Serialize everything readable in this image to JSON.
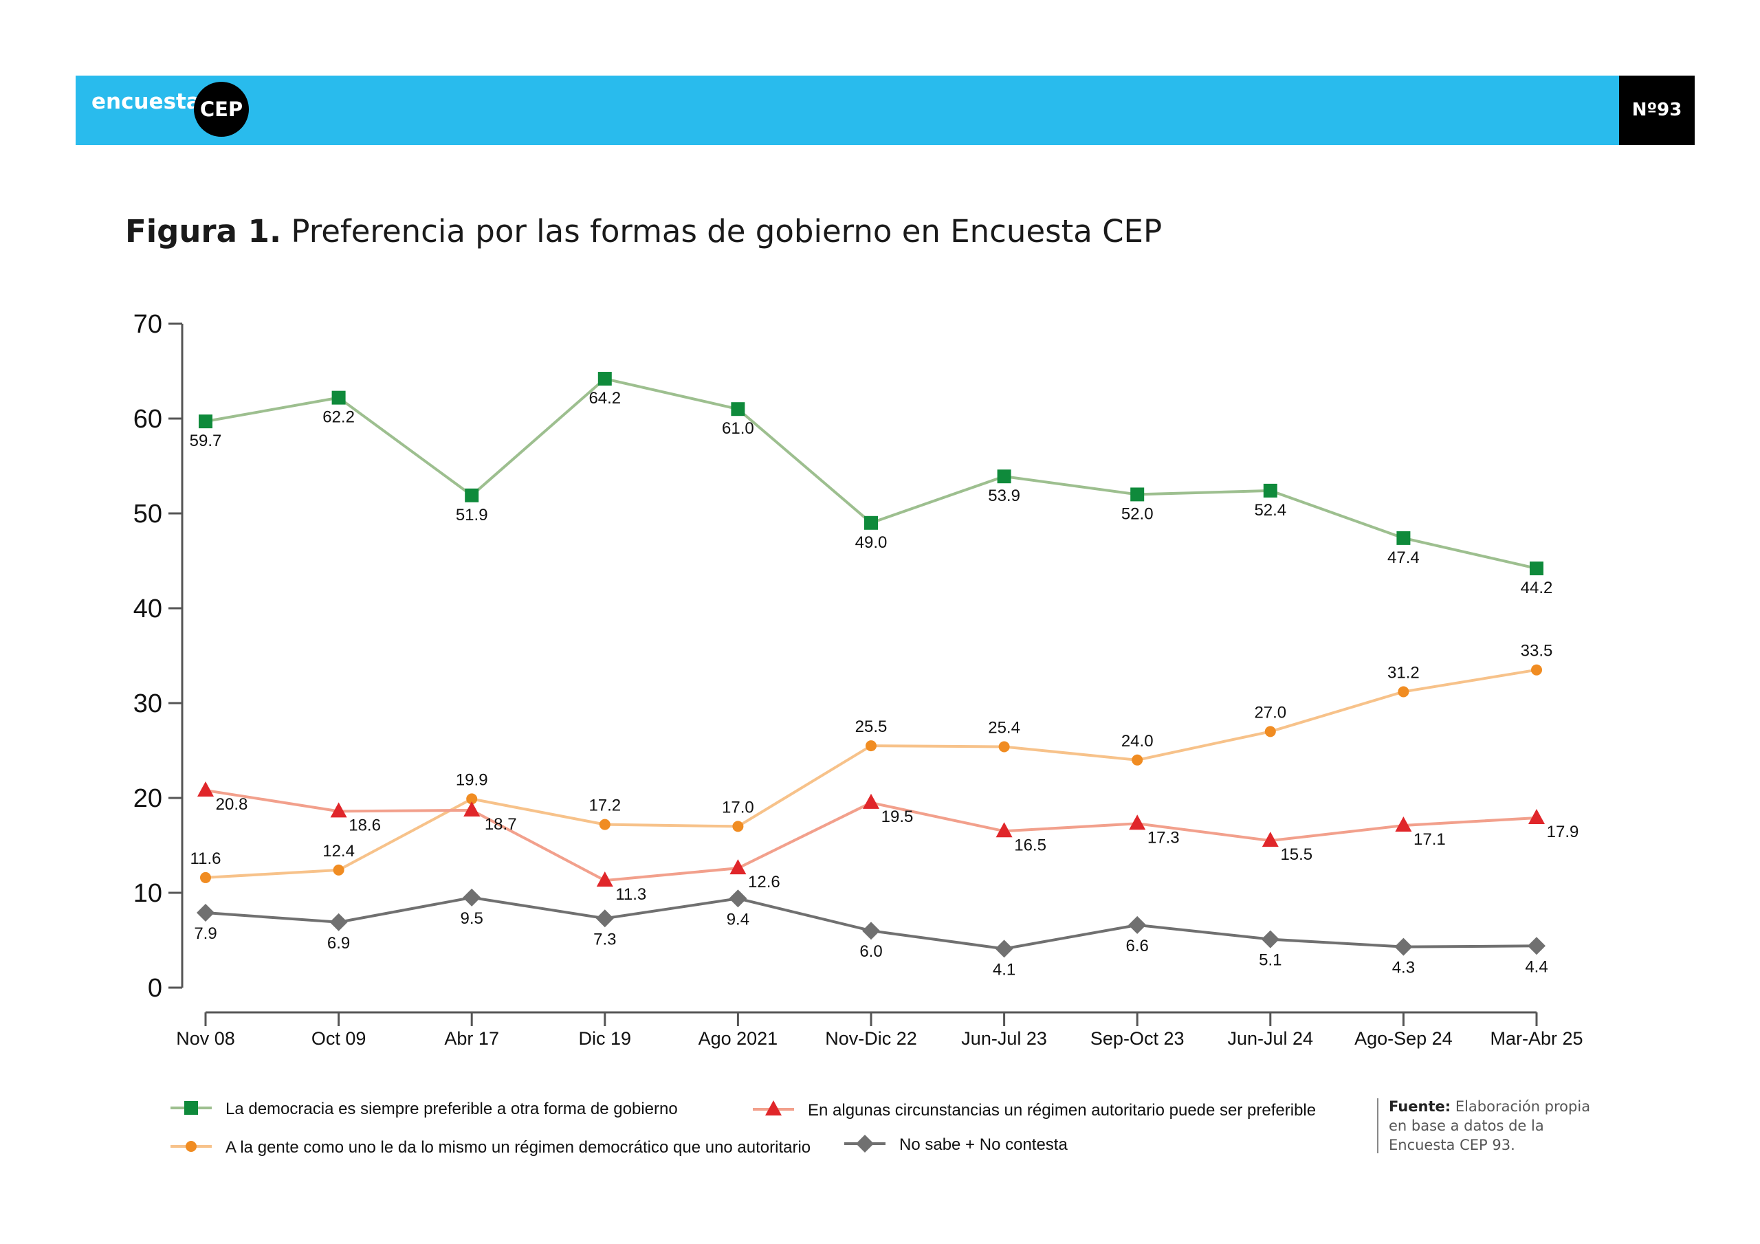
{
  "header": {
    "brand_text": "encuesta",
    "brand_badge": "CEP",
    "issue": "Nº93",
    "colors": {
      "bar": "#29bbed",
      "badge": "#000000"
    }
  },
  "figure": {
    "title_bold": "Figura 1.",
    "title_rest": "Preferencia por las formas de gobierno en Encuesta CEP"
  },
  "source": {
    "label": "Fuente:",
    "text": "Elaboración propia en base a datos de la Encuesta CEP 93."
  },
  "chart_data": {
    "type": "line",
    "categories": [
      "Nov 08",
      "Oct 09",
      "Abr 17",
      "Dic 19",
      "Ago 2021",
      "Nov-Dic 22",
      "Jun-Jul 23",
      "Sep-Oct 23",
      "Jun-Jul 24",
      "Ago-Sep 24",
      "Mar-Abr 25"
    ],
    "ylim": [
      0,
      70
    ],
    "yticks": [
      0,
      10,
      20,
      30,
      40,
      50,
      60,
      70
    ],
    "grid": false,
    "legend_position": "bottom",
    "series": [
      {
        "name": "La democracia es siempre preferible a otra forma de gobierno",
        "values": [
          59.7,
          62.2,
          51.9,
          64.2,
          61.0,
          49.0,
          53.9,
          52.0,
          52.4,
          47.4,
          44.2
        ],
        "labels": [
          "59.7",
          "62.2",
          "51.9",
          "64.2",
          "61.0",
          "49.0",
          "53.9",
          "52.0",
          "52.4",
          "47.4",
          "44.2"
        ],
        "line_color": "#9dbf8f",
        "marker_color": "#0f8a3b",
        "marker": "square"
      },
      {
        "name": "A la gente como uno le da lo mismo un régimen democrático que uno autoritario",
        "values": [
          11.6,
          12.4,
          19.9,
          17.2,
          17.0,
          25.5,
          25.4,
          24.0,
          27.0,
          31.2,
          33.5
        ],
        "labels": [
          "11.6",
          "12.4",
          "19.9",
          "17.2",
          "17.0",
          "25.5",
          "25.4",
          "24.0",
          "27.0",
          "31.2",
          "33.5"
        ],
        "line_color": "#f7c28a",
        "marker_color": "#f08c22",
        "marker": "circle"
      },
      {
        "name": "En algunas circunstancias un régimen autoritario puede ser preferible",
        "values": [
          20.8,
          18.6,
          18.7,
          11.3,
          12.6,
          19.5,
          16.5,
          17.3,
          15.5,
          17.1,
          17.9
        ],
        "labels": [
          "20.8",
          "18.6",
          "18.7",
          "11.3",
          "12.6",
          "19.5",
          "16.5",
          "17.3",
          "15.5",
          "17.1",
          "17.9"
        ],
        "line_color": "#f2a08c",
        "marker_color": "#e0262a",
        "marker": "triangle"
      },
      {
        "name": "No sabe + No contesta",
        "values": [
          7.9,
          6.9,
          9.5,
          7.3,
          9.4,
          6.0,
          4.1,
          6.6,
          5.1,
          4.3,
          4.4
        ],
        "labels": [
          "7.9",
          "6.9",
          "9.5",
          "7.3",
          "9.4",
          "6.0",
          "4.1",
          "6.6",
          "5.1",
          "4.3",
          "4.4"
        ],
        "line_color": "#707070",
        "marker_color": "#707070",
        "marker": "diamond"
      }
    ]
  }
}
